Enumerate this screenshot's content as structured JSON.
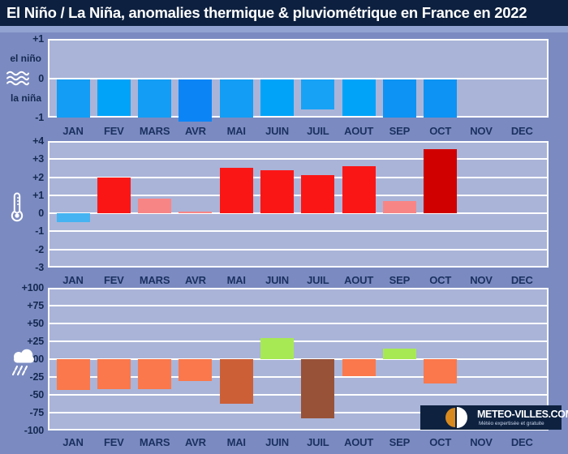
{
  "title": "El Niño / La Niña, anomalies thermique & pluviométrique en France en 2022",
  "months": [
    "JAN",
    "FEV",
    "MARS",
    "AVR",
    "MAI",
    "JUIN",
    "JUIL",
    "AOUT",
    "SEP",
    "OCT",
    "NOV",
    "DEC"
  ],
  "palette": {
    "outer_background": "#7b8bc1",
    "plot_background": "#aab4d8",
    "title_background": "#0d203f",
    "title_text": "#ffffff",
    "gridline": "#ffffff",
    "tick_text": "#142850",
    "month_text": "#1b3160",
    "enso_blue": "#139df4",
    "enso_blue_dotted": "#00a3f8",
    "enso_blue_deep": "#0b85f6",
    "temp_red": "#fb1616",
    "temp_salmon": "#f88585",
    "temp_dark_red": "#d00000",
    "temp_blue": "#45b3f1",
    "rain_orange": "#fa784b",
    "rain_rust": "#cd5f37",
    "rain_brown": "#985238",
    "rain_green": "#a7e955"
  },
  "logo": {
    "name": "METEO-VILLES.COM",
    "tagline": "Météo expertisée et gratuite",
    "background": "#0e2240",
    "icon": "half-orange-half-white-circle-icon"
  },
  "chart_data": [
    {
      "id": "enso",
      "type": "bar",
      "icon": "waves-icon",
      "upper_label": "el niño",
      "lower_label": "la niña",
      "ylim": [
        -1,
        1
      ],
      "ticks": [
        {
          "v": 1,
          "label": "+1"
        },
        {
          "v": 0,
          "label": "0"
        },
        {
          "v": -1,
          "label": "-1"
        }
      ],
      "categories": [
        "JAN",
        "FEV",
        "MARS",
        "AVR",
        "MAI",
        "JUIN",
        "JUIL",
        "AOUT",
        "SEP",
        "OCT",
        "NOV",
        "DEC"
      ],
      "values": [
        -1,
        -0.95,
        -1,
        -1.1,
        -1,
        -0.95,
        -0.8,
        -0.95,
        -1,
        -1,
        null,
        null
      ],
      "bar_colors": [
        "#139df4",
        "#00a3f8",
        "#139df4",
        "#0b85f6",
        "#139df4",
        "#00a3f8",
        "#18a2f6",
        "#00a3f8",
        "#0d93f3",
        "#0d93f3",
        null,
        null
      ],
      "dotted": [
        false,
        true,
        false,
        false,
        false,
        true,
        false,
        true,
        false,
        false,
        false,
        false
      ]
    },
    {
      "id": "thermique",
      "type": "bar",
      "icon": "thermometer-icon",
      "ylim": [
        -3,
        4
      ],
      "ticks": [
        {
          "v": 4,
          "label": "+4"
        },
        {
          "v": 3,
          "label": "+3"
        },
        {
          "v": 2,
          "label": "+2"
        },
        {
          "v": 1,
          "label": "+1"
        },
        {
          "v": 0,
          "label": "0"
        },
        {
          "v": -1,
          "label": "-1"
        },
        {
          "v": -2,
          "label": "-2"
        },
        {
          "v": -3,
          "label": "-3"
        }
      ],
      "categories": [
        "JAN",
        "FEV",
        "MARS",
        "AVR",
        "MAI",
        "JUIN",
        "JUIL",
        "AOUT",
        "SEP",
        "OCT",
        "NOV",
        "DEC"
      ],
      "values": [
        -0.5,
        2.0,
        0.8,
        0.1,
        2.5,
        2.4,
        2.1,
        2.6,
        0.7,
        3.55,
        null,
        null
      ],
      "bar_colors": [
        "#45b3f1",
        "#fb1616",
        "#f88585",
        "#f88585",
        "#fb1616",
        "#fb1616",
        "#fb1616",
        "#fb1616",
        "#f88585",
        "#d00000",
        null,
        null
      ],
      "dotted": [
        false,
        false,
        false,
        false,
        false,
        false,
        false,
        false,
        false,
        false,
        false,
        false
      ]
    },
    {
      "id": "pluviometrique",
      "type": "bar",
      "icon": "rain-cloud-icon",
      "ylim": [
        -100,
        100
      ],
      "ticks": [
        {
          "v": 100,
          "label": "+100"
        },
        {
          "v": 75,
          "label": "+75"
        },
        {
          "v": 50,
          "label": "+50"
        },
        {
          "v": 25,
          "label": "+25"
        },
        {
          "v": 0,
          "label": "00"
        },
        {
          "v": -25,
          "label": "-25"
        },
        {
          "v": -50,
          "label": "-50"
        },
        {
          "v": -75,
          "label": "-75"
        },
        {
          "v": -100,
          "label": "-100"
        }
      ],
      "categories": [
        "JAN",
        "FEV",
        "MARS",
        "AVR",
        "MAI",
        "JUIN",
        "JUIL",
        "AOUT",
        "SEP",
        "OCT",
        "NOV",
        "DEC"
      ],
      "values": [
        -43,
        -42,
        -42,
        -31,
        -63,
        30,
        -83,
        -24,
        15,
        -34,
        null,
        null
      ],
      "bar_colors": [
        "#fa784b",
        "#fa784b",
        "#fa784b",
        "#fa784b",
        "#cd5f37",
        "#a7e955",
        "#985238",
        "#fa784b",
        "#a7e955",
        "#fa784b",
        null,
        null
      ],
      "dotted": [
        false,
        false,
        false,
        false,
        false,
        false,
        false,
        false,
        false,
        false,
        false,
        false
      ]
    }
  ]
}
